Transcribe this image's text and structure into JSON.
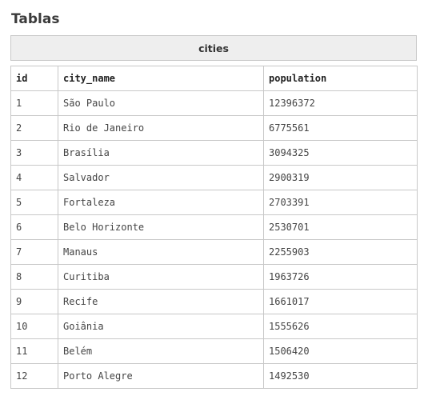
{
  "page": {
    "title": "Tablas"
  },
  "table": {
    "caption": "cities",
    "columns": [
      "id",
      "city_name",
      "population"
    ],
    "rows": [
      [
        "1",
        "São Paulo",
        "12396372"
      ],
      [
        "2",
        "Rio de Janeiro",
        "6775561"
      ],
      [
        "3",
        "Brasília",
        "3094325"
      ],
      [
        "4",
        "Salvador",
        "2900319"
      ],
      [
        "5",
        "Fortaleza",
        "2703391"
      ],
      [
        "6",
        "Belo Horizonte",
        "2530701"
      ],
      [
        "7",
        "Manaus",
        "2255903"
      ],
      [
        "8",
        "Curitiba",
        "1963726"
      ],
      [
        "9",
        "Recife",
        "1661017"
      ],
      [
        "10",
        "Goiânia",
        "1555626"
      ],
      [
        "11",
        "Belém",
        "1506420"
      ],
      [
        "12",
        "Porto Alegre",
        "1492530"
      ]
    ]
  }
}
